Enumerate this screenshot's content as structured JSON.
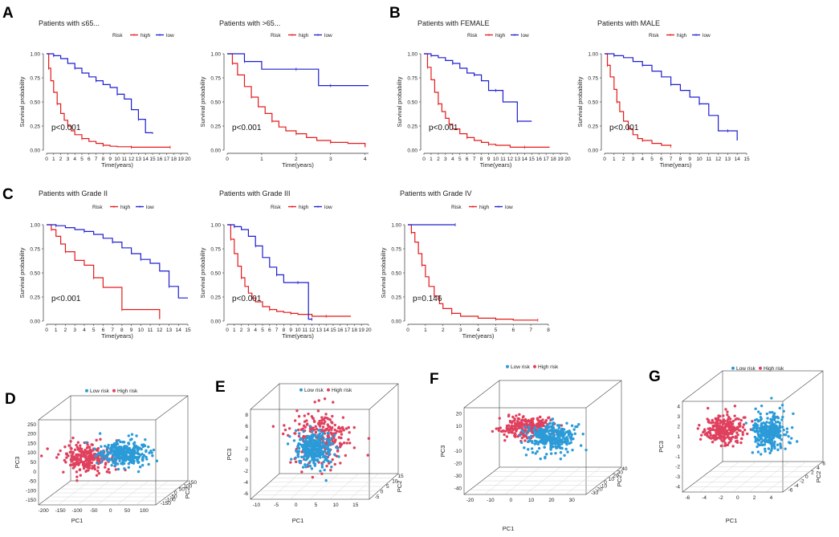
{
  "panel_labels": [
    "A",
    "B",
    "C",
    "D",
    "E",
    "F",
    "G"
  ],
  "colors": {
    "high": "#e41a1c",
    "low": "#1f1fd0",
    "pca_low": "#2b9bd8",
    "pca_high": "#e0405e",
    "axis": "#333333",
    "box": "#444444"
  },
  "chart_data": [
    {
      "id": "km_le65",
      "type": "line",
      "title": "Patients with ≤65...",
      "legend_title": "Risk",
      "legend": [
        "high",
        "low"
      ],
      "xlabel": "Time(years)",
      "ylabel": "Survival probability",
      "pvalue": "p<0.001",
      "xticks": [
        "0",
        "1",
        "2",
        "3",
        "4",
        "5",
        "6",
        "7",
        "8",
        "9",
        "10",
        "11",
        "12",
        "13",
        "14",
        "15",
        "16",
        "17",
        "18",
        "19",
        "20"
      ],
      "xlim": [
        0,
        20
      ],
      "yticks": [
        "0.00",
        "0.25",
        "0.50",
        "0.75",
        "1.00"
      ],
      "ylim": [
        0,
        1
      ],
      "series": [
        {
          "name": "high",
          "x": [
            0,
            0.3,
            0.6,
            1,
            1.5,
            2,
            2.5,
            3,
            3.5,
            4,
            5,
            6,
            7,
            8,
            9,
            10,
            12,
            14,
            16,
            17.5
          ],
          "y": [
            1,
            0.85,
            0.72,
            0.6,
            0.48,
            0.38,
            0.31,
            0.25,
            0.2,
            0.16,
            0.12,
            0.09,
            0.07,
            0.05,
            0.04,
            0.035,
            0.03,
            0.03,
            0.03,
            0.03
          ]
        },
        {
          "name": "low",
          "x": [
            0,
            1,
            2,
            3,
            4,
            5,
            6,
            7,
            8,
            9,
            10,
            11,
            12,
            13,
            14,
            15
          ],
          "y": [
            1,
            0.98,
            0.95,
            0.9,
            0.85,
            0.8,
            0.76,
            0.72,
            0.68,
            0.65,
            0.58,
            0.53,
            0.42,
            0.32,
            0.18,
            0.17
          ]
        }
      ]
    },
    {
      "id": "km_gt65",
      "type": "line",
      "title": "Patients with >65...",
      "legend_title": "Risk",
      "legend": [
        "high",
        "low"
      ],
      "xlabel": "Time(years)",
      "ylabel": "Survival probability",
      "pvalue": "p<0.001",
      "xticks": [
        "0",
        "1",
        "2",
        "3",
        "4"
      ],
      "xlim": [
        0,
        4.1
      ],
      "yticks": [
        "0.00",
        "0.25",
        "0.50",
        "0.75",
        "1.00"
      ],
      "ylim": [
        0,
        1
      ],
      "series": [
        {
          "name": "high",
          "x": [
            0,
            0.15,
            0.3,
            0.5,
            0.7,
            0.9,
            1.1,
            1.3,
            1.5,
            1.7,
            2,
            2.3,
            2.6,
            3,
            3.5,
            4
          ],
          "y": [
            1,
            0.9,
            0.78,
            0.66,
            0.55,
            0.45,
            0.38,
            0.3,
            0.24,
            0.2,
            0.17,
            0.13,
            0.1,
            0.08,
            0.07,
            0.03
          ]
        },
        {
          "name": "low",
          "x": [
            0,
            0.5,
            1,
            1.5,
            2,
            2.6,
            2.65,
            3,
            4.1
          ],
          "y": [
            1,
            0.92,
            0.84,
            0.84,
            0.84,
            0.84,
            0.67,
            0.67,
            0.67
          ]
        }
      ]
    },
    {
      "id": "km_female",
      "type": "line",
      "title": "Patients with FEMALE",
      "legend_title": "Risk",
      "legend": [
        "high",
        "low"
      ],
      "xlabel": "Time(years)",
      "ylabel": "Survival probability",
      "pvalue": "p<0.001",
      "xticks": [
        "0",
        "1",
        "2",
        "3",
        "4",
        "5",
        "6",
        "7",
        "8",
        "9",
        "10",
        "11",
        "12",
        "13",
        "14",
        "15",
        "16",
        "17",
        "18",
        "19",
        "20"
      ],
      "xlim": [
        0,
        20
      ],
      "yticks": [
        "0.00",
        "0.25",
        "0.50",
        "0.75",
        "1.00"
      ],
      "ylim": [
        0,
        1
      ],
      "series": [
        {
          "name": "high",
          "x": [
            0,
            0.5,
            1,
            1.5,
            2,
            2.5,
            3,
            3.5,
            4,
            5,
            6,
            7,
            8,
            9,
            10,
            12,
            14,
            16,
            17.5
          ],
          "y": [
            1,
            0.86,
            0.73,
            0.6,
            0.48,
            0.4,
            0.33,
            0.27,
            0.22,
            0.17,
            0.13,
            0.1,
            0.08,
            0.06,
            0.05,
            0.03,
            0.03,
            0.03,
            0.03
          ]
        },
        {
          "name": "low",
          "x": [
            0,
            1,
            2,
            3,
            4,
            5,
            6,
            7,
            8,
            9,
            10,
            11,
            12,
            13,
            14,
            15
          ],
          "y": [
            1,
            0.98,
            0.96,
            0.93,
            0.9,
            0.85,
            0.8,
            0.78,
            0.72,
            0.62,
            0.62,
            0.5,
            0.5,
            0.3,
            0.3,
            0.3
          ]
        }
      ]
    },
    {
      "id": "km_male",
      "type": "line",
      "title": "Patients with MALE",
      "legend_title": "Risk",
      "legend": [
        "high",
        "low"
      ],
      "xlabel": "Time(years)",
      "ylabel": "Survival probability",
      "pvalue": "p<0.001",
      "xticks": [
        "0",
        "1",
        "2",
        "3",
        "4",
        "5",
        "6",
        "7",
        "8",
        "9",
        "10",
        "11",
        "12",
        "13",
        "14",
        "15"
      ],
      "xlim": [
        0,
        15
      ],
      "yticks": [
        "0.00",
        "0.25",
        "0.50",
        "0.75",
        "1.00"
      ],
      "ylim": [
        0,
        1
      ],
      "series": [
        {
          "name": "high",
          "x": [
            0,
            0.3,
            0.6,
            1,
            1.3,
            1.6,
            2,
            2.5,
            3,
            3.5,
            4,
            5,
            6,
            7
          ],
          "y": [
            1,
            0.88,
            0.76,
            0.63,
            0.5,
            0.4,
            0.3,
            0.22,
            0.16,
            0.12,
            0.1,
            0.07,
            0.05,
            0.04
          ]
        },
        {
          "name": "low",
          "x": [
            0,
            1,
            2,
            3,
            4,
            5,
            6,
            7,
            8,
            9,
            10,
            11,
            12,
            13,
            14
          ],
          "y": [
            1,
            0.98,
            0.96,
            0.92,
            0.88,
            0.82,
            0.76,
            0.68,
            0.62,
            0.55,
            0.48,
            0.36,
            0.2,
            0.2,
            0.1
          ]
        }
      ]
    },
    {
      "id": "km_grade2",
      "type": "line",
      "title": "Patients with Grade II",
      "legend_title": "Risk",
      "legend": [
        "high",
        "low"
      ],
      "xlabel": "Time(years)",
      "ylabel": "Survival probability",
      "pvalue": "p<0.001",
      "xticks": [
        "0",
        "1",
        "2",
        "3",
        "4",
        "5",
        "6",
        "7",
        "8",
        "9",
        "10",
        "11",
        "12",
        "13",
        "14",
        "15"
      ],
      "xlim": [
        0,
        15
      ],
      "yticks": [
        "0.00",
        "0.25",
        "0.50",
        "0.75",
        "1.00"
      ],
      "ylim": [
        0,
        1
      ],
      "series": [
        {
          "name": "high",
          "x": [
            0,
            0.5,
            1,
            1.5,
            2,
            3,
            4,
            5,
            6,
            7,
            8,
            10,
            12
          ],
          "y": [
            1,
            0.95,
            0.88,
            0.8,
            0.72,
            0.63,
            0.58,
            0.45,
            0.35,
            0.35,
            0.12,
            0.12,
            0.02
          ]
        },
        {
          "name": "low",
          "x": [
            0,
            1,
            2,
            3,
            4,
            5,
            6,
            7,
            8,
            9,
            10,
            11,
            12,
            13,
            14,
            15
          ],
          "y": [
            1,
            0.99,
            0.97,
            0.95,
            0.93,
            0.9,
            0.86,
            0.82,
            0.76,
            0.7,
            0.64,
            0.6,
            0.52,
            0.36,
            0.24,
            0.24
          ]
        }
      ]
    },
    {
      "id": "km_grade3",
      "type": "line",
      "title": "Patients with Grade III",
      "legend_title": "Risk",
      "legend": [
        "high",
        "low"
      ],
      "xlabel": "Time(years)",
      "ylabel": "Survival probability",
      "pvalue": "p<0.001",
      "xticks": [
        "0",
        "1",
        "2",
        "3",
        "4",
        "5",
        "6",
        "7",
        "8",
        "9",
        "10",
        "11",
        "12",
        "13",
        "14",
        "15",
        "16",
        "17",
        "18",
        "19",
        "20"
      ],
      "xlim": [
        0,
        20
      ],
      "yticks": [
        "0.00",
        "0.25",
        "0.50",
        "0.75",
        "1.00"
      ],
      "ylim": [
        0,
        1
      ],
      "series": [
        {
          "name": "high",
          "x": [
            0,
            0.5,
            1,
            1.5,
            2,
            2.5,
            3,
            3.5,
            4,
            5,
            6,
            7,
            8,
            9,
            10,
            12,
            14,
            16,
            17.5
          ],
          "y": [
            1,
            0.85,
            0.7,
            0.57,
            0.45,
            0.36,
            0.29,
            0.24,
            0.2,
            0.15,
            0.12,
            0.1,
            0.09,
            0.08,
            0.07,
            0.05,
            0.05,
            0.05,
            0.05
          ]
        },
        {
          "name": "low",
          "x": [
            0,
            1,
            2,
            3,
            4,
            5,
            6,
            7,
            8,
            9,
            10,
            11,
            11.5,
            12
          ],
          "y": [
            1,
            0.98,
            0.95,
            0.88,
            0.78,
            0.66,
            0.56,
            0.48,
            0.4,
            0.4,
            0.4,
            0.4,
            0.02,
            0.02
          ]
        }
      ]
    },
    {
      "id": "km_grade4",
      "type": "line",
      "title": "Patients with Grade IV",
      "legend_title": "Risk",
      "legend": [
        "high",
        "low"
      ],
      "xlabel": "Time(years)",
      "ylabel": "Survival probability",
      "pvalue": "p=0.146",
      "xticks": [
        "0",
        "1",
        "2",
        "3",
        "4",
        "5",
        "6",
        "7",
        "8"
      ],
      "xlim": [
        0,
        8
      ],
      "yticks": [
        "0.00",
        "0.25",
        "0.50",
        "0.75",
        "1.00"
      ],
      "ylim": [
        0,
        1
      ],
      "series": [
        {
          "name": "high",
          "x": [
            0,
            0.2,
            0.4,
            0.6,
            0.8,
            1,
            1.2,
            1.5,
            1.8,
            2,
            2.5,
            3,
            4,
            5,
            6,
            7,
            7.4
          ],
          "y": [
            1,
            0.92,
            0.82,
            0.7,
            0.58,
            0.46,
            0.36,
            0.26,
            0.18,
            0.13,
            0.08,
            0.05,
            0.03,
            0.02,
            0.01,
            0.01,
            0.01
          ]
        },
        {
          "name": "low",
          "x": [
            0,
            2.7
          ],
          "y": [
            1,
            1
          ]
        }
      ]
    },
    {
      "id": "pca_D",
      "type": "scatter",
      "legend": [
        "Low risk",
        "High risk"
      ],
      "xlabel": "PC1",
      "ylabel": "PC3",
      "zlabel": "PC2",
      "xticks": [
        "-200",
        "-150",
        "-100",
        "-50",
        "0",
        "50",
        "100"
      ],
      "yticks": [
        "-150",
        "-100",
        "-50",
        "0",
        "50",
        "100",
        "150",
        "200",
        "250"
      ],
      "zticks": [
        "-150",
        "-100",
        "-50",
        "0",
        "50",
        "100",
        "150"
      ],
      "clusters": {
        "Low risk": {
          "center": [
            0.58,
            0.52
          ],
          "spread": [
            0.15,
            0.1
          ],
          "n": 320
        },
        "High risk": {
          "center": [
            0.33,
            0.56
          ],
          "spread": [
            0.15,
            0.12
          ],
          "n": 260
        }
      }
    },
    {
      "id": "pca_E",
      "type": "scatter",
      "legend": [
        "Low risk",
        "High risk"
      ],
      "xlabel": "PC1",
      "ylabel": "PC3",
      "zlabel": "PC2",
      "xticks": [
        "-10",
        "-5",
        "0",
        "5",
        "10",
        "15"
      ],
      "yticks": [
        "-6",
        "-4",
        "-2",
        "0",
        "2",
        "4",
        "6",
        "8"
      ],
      "zticks": [
        "-5",
        "0",
        "5",
        "10",
        "15"
      ],
      "clusters": {
        "Low risk": {
          "center": [
            0.43,
            0.56
          ],
          "spread": [
            0.1,
            0.12
          ],
          "n": 320
        },
        "High risk": {
          "center": [
            0.48,
            0.46
          ],
          "spread": [
            0.17,
            0.2
          ],
          "n": 240
        }
      }
    },
    {
      "id": "pca_F",
      "type": "scatter",
      "legend": [
        "Low risk",
        "High risk"
      ],
      "xlabel": "PC1",
      "ylabel": "PC3",
      "zlabel": "PC2",
      "xticks": [
        "-20",
        "-10",
        "0",
        "10",
        "20",
        "30"
      ],
      "yticks": [
        "-40",
        "-30",
        "-20",
        "-10",
        "0",
        "10",
        "20"
      ],
      "zticks": [
        "-30",
        "-20",
        "-10",
        "0",
        "10",
        "20",
        "30",
        "40"
      ],
      "clusters": {
        "Low risk": {
          "center": [
            0.55,
            0.5
          ],
          "spread": [
            0.13,
            0.11
          ],
          "n": 320
        },
        "High risk": {
          "center": [
            0.4,
            0.4
          ],
          "spread": [
            0.14,
            0.08
          ],
          "n": 260
        }
      }
    },
    {
      "id": "pca_G",
      "type": "scatter",
      "legend": [
        "Low risk",
        "High risk"
      ],
      "xlabel": "PC1",
      "ylabel": "PC3",
      "zlabel": "PC2",
      "xticks": [
        "-6",
        "-4",
        "-2",
        "0",
        "2",
        "4"
      ],
      "yticks": [
        "-4",
        "-3",
        "-2",
        "-1",
        "0",
        "1",
        "2",
        "3",
        "4"
      ],
      "zticks": [
        "-6",
        "-4",
        "-2",
        "0",
        "2",
        "4",
        "6"
      ],
      "clusters": {
        "Low risk": {
          "center": [
            0.62,
            0.5
          ],
          "spread": [
            0.1,
            0.12
          ],
          "n": 320
        },
        "High risk": {
          "center": [
            0.3,
            0.48
          ],
          "spread": [
            0.12,
            0.1
          ],
          "n": 260
        }
      }
    }
  ]
}
